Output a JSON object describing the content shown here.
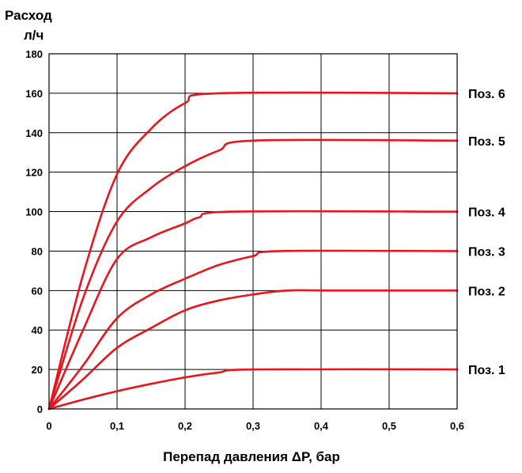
{
  "chart_data": {
    "type": "line",
    "ylabel_line1": "Расход",
    "ylabel_line2": "л/ч",
    "xlabel": "Перепад давления ΔP, бар",
    "xlim": [
      0,
      0.6
    ],
    "ylim": [
      0,
      180
    ],
    "x_ticks": [
      "0",
      "0,1",
      "0,2",
      "0,3",
      "0,4",
      "0,5",
      "0,6"
    ],
    "y_ticks": [
      "0",
      "20",
      "40",
      "60",
      "80",
      "100",
      "120",
      "140",
      "160",
      "180"
    ],
    "grid": true,
    "series_color": "#e8141e",
    "series": [
      {
        "name": "Поз. 1",
        "x": [
          0,
          0.05,
          0.1,
          0.15,
          0.2,
          0.25,
          0.3,
          0.6
        ],
        "y": [
          0,
          4.7,
          9,
          12.7,
          16,
          18.5,
          20,
          20
        ]
      },
      {
        "name": "Поз. 2",
        "x": [
          0,
          0.05,
          0.1,
          0.15,
          0.2,
          0.25,
          0.3,
          0.35,
          0.42,
          0.6
        ],
        "y": [
          0,
          15,
          31,
          41,
          50,
          55,
          58,
          60,
          60,
          60
        ]
      },
      {
        "name": "Поз. 3",
        "x": [
          0,
          0.05,
          0.1,
          0.15,
          0.2,
          0.25,
          0.3,
          0.34,
          0.6
        ],
        "y": [
          0,
          22,
          46,
          58,
          66,
          73,
          77.5,
          80,
          80
        ]
      },
      {
        "name": "Поз. 4",
        "x": [
          0,
          0.05,
          0.1,
          0.15,
          0.2,
          0.22,
          0.27,
          0.6
        ],
        "y": [
          0,
          40,
          76,
          87,
          94,
          97,
          100,
          100
        ]
      },
      {
        "name": "Поз. 5",
        "x": [
          0,
          0.05,
          0.1,
          0.15,
          0.2,
          0.25,
          0.3,
          0.6
        ],
        "y": [
          0,
          56,
          95,
          112,
          123,
          131,
          136,
          136
        ]
      },
      {
        "name": "Поз. 6",
        "x": [
          0,
          0.05,
          0.1,
          0.15,
          0.2,
          0.25,
          0.6
        ],
        "y": [
          0,
          68,
          119,
          142,
          155,
          160,
          160
        ]
      }
    ]
  }
}
